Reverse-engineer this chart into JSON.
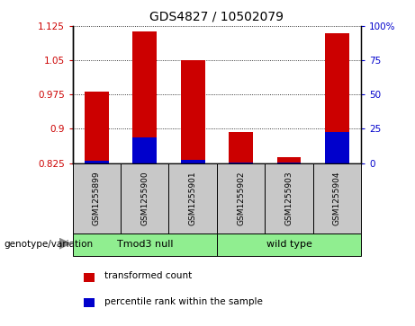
{
  "title": "GDS4827 / 10502079",
  "samples": [
    "GSM1255899",
    "GSM1255900",
    "GSM1255901",
    "GSM1255902",
    "GSM1255903",
    "GSM1255904"
  ],
  "red_values": [
    0.981,
    1.113,
    1.051,
    0.892,
    0.838,
    1.109
  ],
  "blue_values": [
    0.829,
    0.882,
    0.832,
    0.826,
    0.826,
    0.893
  ],
  "ylim": [
    0.825,
    1.125
  ],
  "yticks_left": [
    0.825,
    0.9,
    0.975,
    1.05,
    1.125
  ],
  "yticks_right": [
    0,
    25,
    50,
    75,
    100
  ],
  "ytick_labels_left": [
    "0.825",
    "0.9",
    "0.975",
    "1.05",
    "1.125"
  ],
  "ytick_labels_right": [
    "0",
    "25",
    "50",
    "75",
    "100%"
  ],
  "group_info": [
    {
      "label": "Tmod3 null",
      "start": 0,
      "end": 3
    },
    {
      "label": "wild type",
      "start": 3,
      "end": 6
    }
  ],
  "legend_items": [
    {
      "label": "transformed count",
      "color": "#CC0000"
    },
    {
      "label": "percentile rank within the sample",
      "color": "#0000CC"
    }
  ],
  "bar_width": 0.5,
  "bar_color_red": "#CC0000",
  "bar_color_blue": "#0000CC",
  "tick_color_left": "#CC0000",
  "tick_color_right": "#0000CC",
  "sample_bg_color": "#C8C8C8",
  "group_bg_color": "#90EE90",
  "genotype_label": "genotype/variation"
}
